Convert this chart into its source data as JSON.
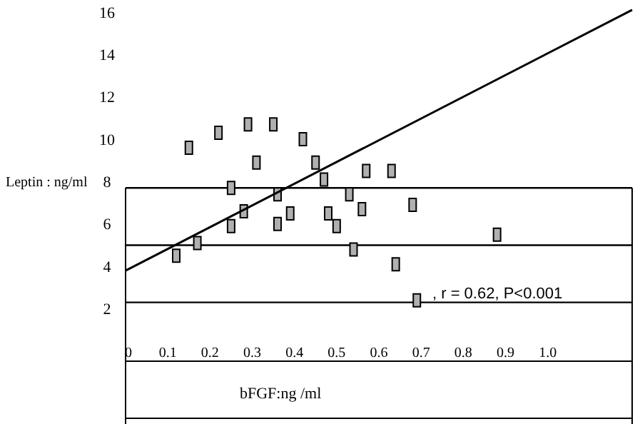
{
  "chart_data": {
    "type": "scatter",
    "xlabel": "bFGF:ng /ml",
    "ylabel": "Leptin : ng/ml",
    "xlim": [
      0,
      1.2
    ],
    "ylim": [
      2,
      16.5
    ],
    "xticks": [
      0,
      0.1,
      0.2,
      0.3,
      0.4,
      0.5,
      0.6,
      0.7,
      0.8,
      0.9,
      {
        "value": 1.0,
        "label": "1.0"
      }
    ],
    "yticks": [
      2,
      4,
      6,
      8,
      10,
      12,
      14,
      16
    ],
    "marker": "square",
    "grid": false,
    "series": [
      {
        "type": "scatter",
        "color": "#b0b0b0",
        "x": [
          0.12,
          0.17,
          0.15,
          0.22,
          0.25,
          0.25,
          0.28,
          0.29,
          0.31,
          0.35,
          0.36,
          0.36,
          0.39,
          0.42,
          0.45,
          0.47,
          0.48,
          0.5,
          0.53,
          0.54,
          0.56,
          0.57,
          0.63,
          0.64,
          0.68,
          0.69,
          0.88
        ],
        "values": [
          4.5,
          5.1,
          9.6,
          10.3,
          7.7,
          5.9,
          6.6,
          10.7,
          8.9,
          10.7,
          7.4,
          6.0,
          6.5,
          10.0,
          8.9,
          8.1,
          6.5,
          5.9,
          7.4,
          4.8,
          6.7,
          8.5,
          8.5,
          4.1,
          6.9,
          2.4,
          5.5
        ]
      },
      {
        "type": "line",
        "marker": "none",
        "color": "#000000",
        "x": [
          0,
          1.2
        ],
        "values": [
          3.8,
          16.1
        ]
      }
    ],
    "ref_lines": [
      {
        "axis": "y",
        "value": 7.7,
        "color": "#000000"
      },
      {
        "axis": "y",
        "value": 5.0,
        "color": "#000000"
      },
      {
        "axis": "y",
        "value": 2.3,
        "color": "#000000"
      }
    ],
    "annotations": [
      ", r = 0.62, P<0.001"
    ]
  }
}
